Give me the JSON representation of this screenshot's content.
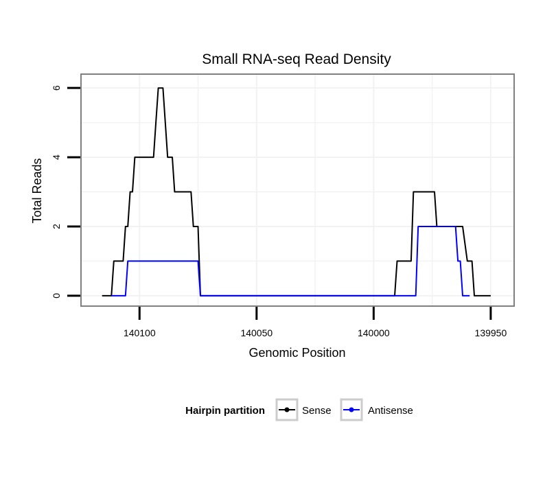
{
  "chart_data": {
    "type": "line",
    "title": "Small RNA-seq Read Density",
    "xlabel": "Genomic Position",
    "ylabel": "Total Reads",
    "x_reversed": true,
    "xlim": [
      140125,
      139940
    ],
    "ylim": [
      -0.3,
      6.4
    ],
    "x_ticks": [
      140100,
      140050,
      140000,
      139950
    ],
    "y_ticks": [
      0,
      2,
      4,
      6
    ],
    "grid": true,
    "legend": {
      "title": "Hairpin partition",
      "position": "bottom",
      "entries": [
        "Sense",
        "Antisense"
      ]
    },
    "series": [
      {
        "name": "Sense",
        "color": "#000000",
        "x": [
          140116,
          140112,
          140111,
          140108,
          140107,
          140106,
          140105,
          140104,
          140103,
          140102,
          140101,
          140100,
          140099,
          140098,
          140097,
          140096,
          140095,
          140094,
          140093,
          140092,
          140091,
          140090,
          140089,
          140088,
          140087,
          140086,
          140085,
          140084,
          140083,
          140082,
          140081,
          140080,
          140079,
          140078,
          140077,
          140076,
          140075,
          140074,
          140073,
          140072,
          140071,
          140070,
          140069,
          140068,
          140067,
          140066,
          140065,
          139991,
          139990,
          139989,
          139985,
          139984,
          139983,
          139975,
          139974,
          139973,
          139966,
          139965,
          139964,
          139963,
          139962,
          139960,
          139959,
          139958,
          139957,
          139950
        ],
        "y": [
          0,
          0,
          1,
          1,
          1,
          2,
          2,
          3,
          3,
          4,
          4,
          4,
          4,
          4,
          4,
          4,
          4,
          4,
          5,
          6,
          6,
          6,
          5,
          4,
          4,
          4,
          3,
          3,
          3,
          3,
          3,
          3,
          3,
          3,
          2,
          2,
          2,
          0,
          0,
          0,
          0,
          0,
          0,
          0,
          0,
          0,
          0,
          0,
          1,
          1,
          1,
          1,
          3,
          3,
          3,
          2,
          2,
          2,
          2,
          2,
          2,
          1,
          1,
          1,
          0,
          0
        ]
      },
      {
        "name": "Antisense",
        "color": "#0000ff",
        "x": [
          140112,
          140111,
          140106,
          140105,
          140104,
          140103,
          140102,
          140101,
          140100,
          140099,
          140098,
          140097,
          140096,
          140095,
          140094,
          140093,
          140092,
          140091,
          140090,
          140089,
          140088,
          140087,
          140086,
          140085,
          140084,
          140083,
          140082,
          140081,
          140080,
          140079,
          140078,
          140077,
          140076,
          140075,
          140074,
          139982,
          139981,
          139980,
          139979,
          139978,
          139977,
          139976,
          139975,
          139974,
          139973,
          139972,
          139971,
          139970,
          139969,
          139968,
          139967,
          139966,
          139965,
          139964,
          139963,
          139962,
          139961,
          139960,
          139959
        ],
        "y": [
          0,
          0,
          0,
          1,
          1,
          1,
          1,
          1,
          1,
          1,
          1,
          1,
          1,
          1,
          1,
          1,
          1,
          1,
          1,
          1,
          1,
          1,
          1,
          1,
          1,
          1,
          1,
          1,
          1,
          1,
          1,
          1,
          1,
          1,
          0,
          0,
          2,
          2,
          2,
          2,
          2,
          2,
          2,
          2,
          2,
          2,
          2,
          2,
          2,
          2,
          2,
          2,
          2,
          1,
          1,
          0,
          0,
          0,
          0
        ]
      }
    ]
  }
}
